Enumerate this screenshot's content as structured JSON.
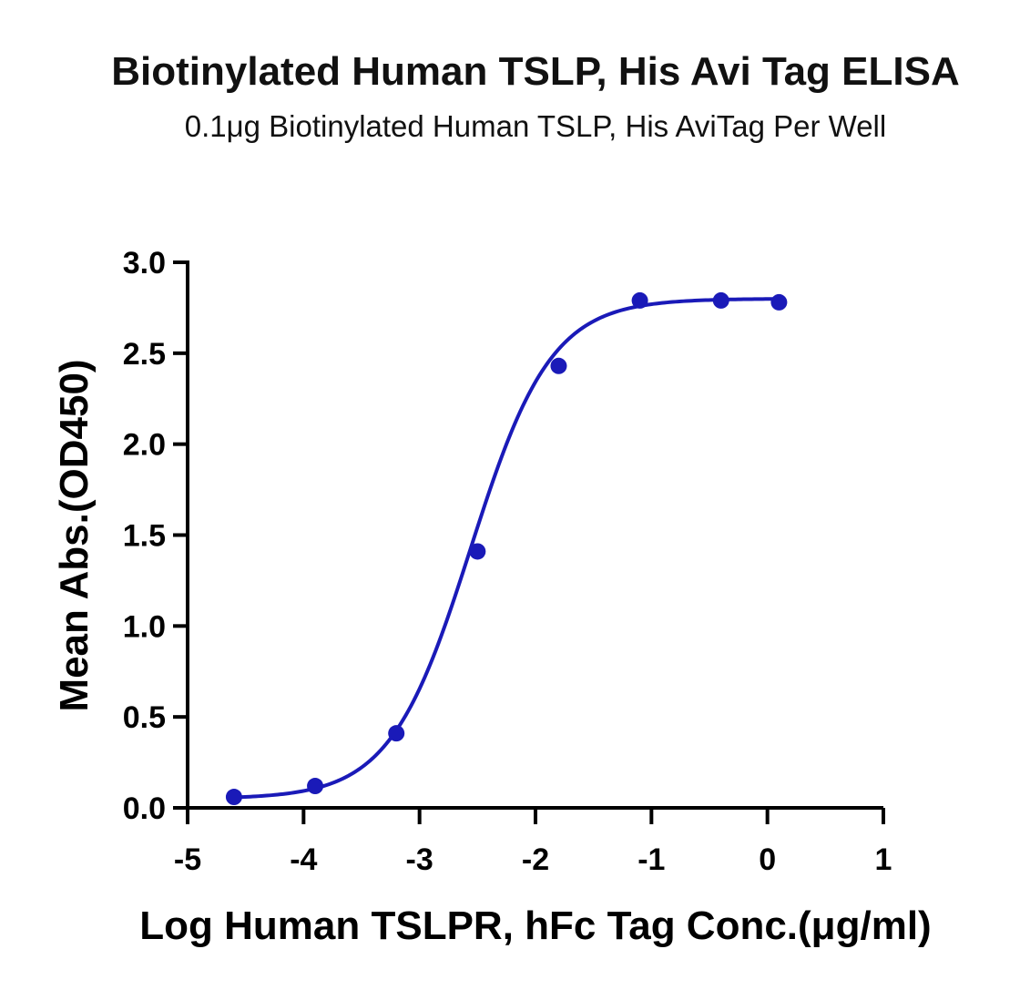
{
  "chart_data": {
    "type": "scatter",
    "title": "Biotinylated Human TSLP, His Avi Tag ELISA",
    "subtitle": "0.1μg Biotinylated Human TSLP, His AviTag Per Well",
    "xlabel": "Log Human TSLPR, hFc Tag Conc.(μg/ml)",
    "ylabel": "Mean Abs.(OD450)",
    "xlim": [
      -5,
      1
    ],
    "ylim": [
      0,
      3
    ],
    "x_ticks": [
      -5,
      -4,
      -3,
      -2,
      -1,
      0,
      1
    ],
    "y_ticks": [
      0,
      0.5,
      1,
      1.5,
      2,
      2.5,
      3
    ],
    "x_tick_labels": [
      "-5",
      "-4",
      "-3",
      "-2",
      "-1",
      "0",
      "1"
    ],
    "y_tick_labels": [
      "0.0",
      "0.5",
      "1.0",
      "1.5",
      "2.0",
      "2.5",
      "3.0"
    ],
    "grid": false,
    "legend": "none",
    "series": [
      {
        "color": "#1a1ab8",
        "x": [
          -4.6,
          -3.9,
          -3.2,
          -2.5,
          -1.8,
          -1.1,
          -0.4,
          0.1
        ],
        "y": [
          0.06,
          0.12,
          0.41,
          1.41,
          2.43,
          2.79,
          2.79,
          2.78
        ],
        "fit": {
          "model": "four-parameter logistic",
          "bottom": 0.05,
          "top": 2.8,
          "logEC50": -2.56,
          "hillslope": 1.25
        }
      }
    ]
  }
}
